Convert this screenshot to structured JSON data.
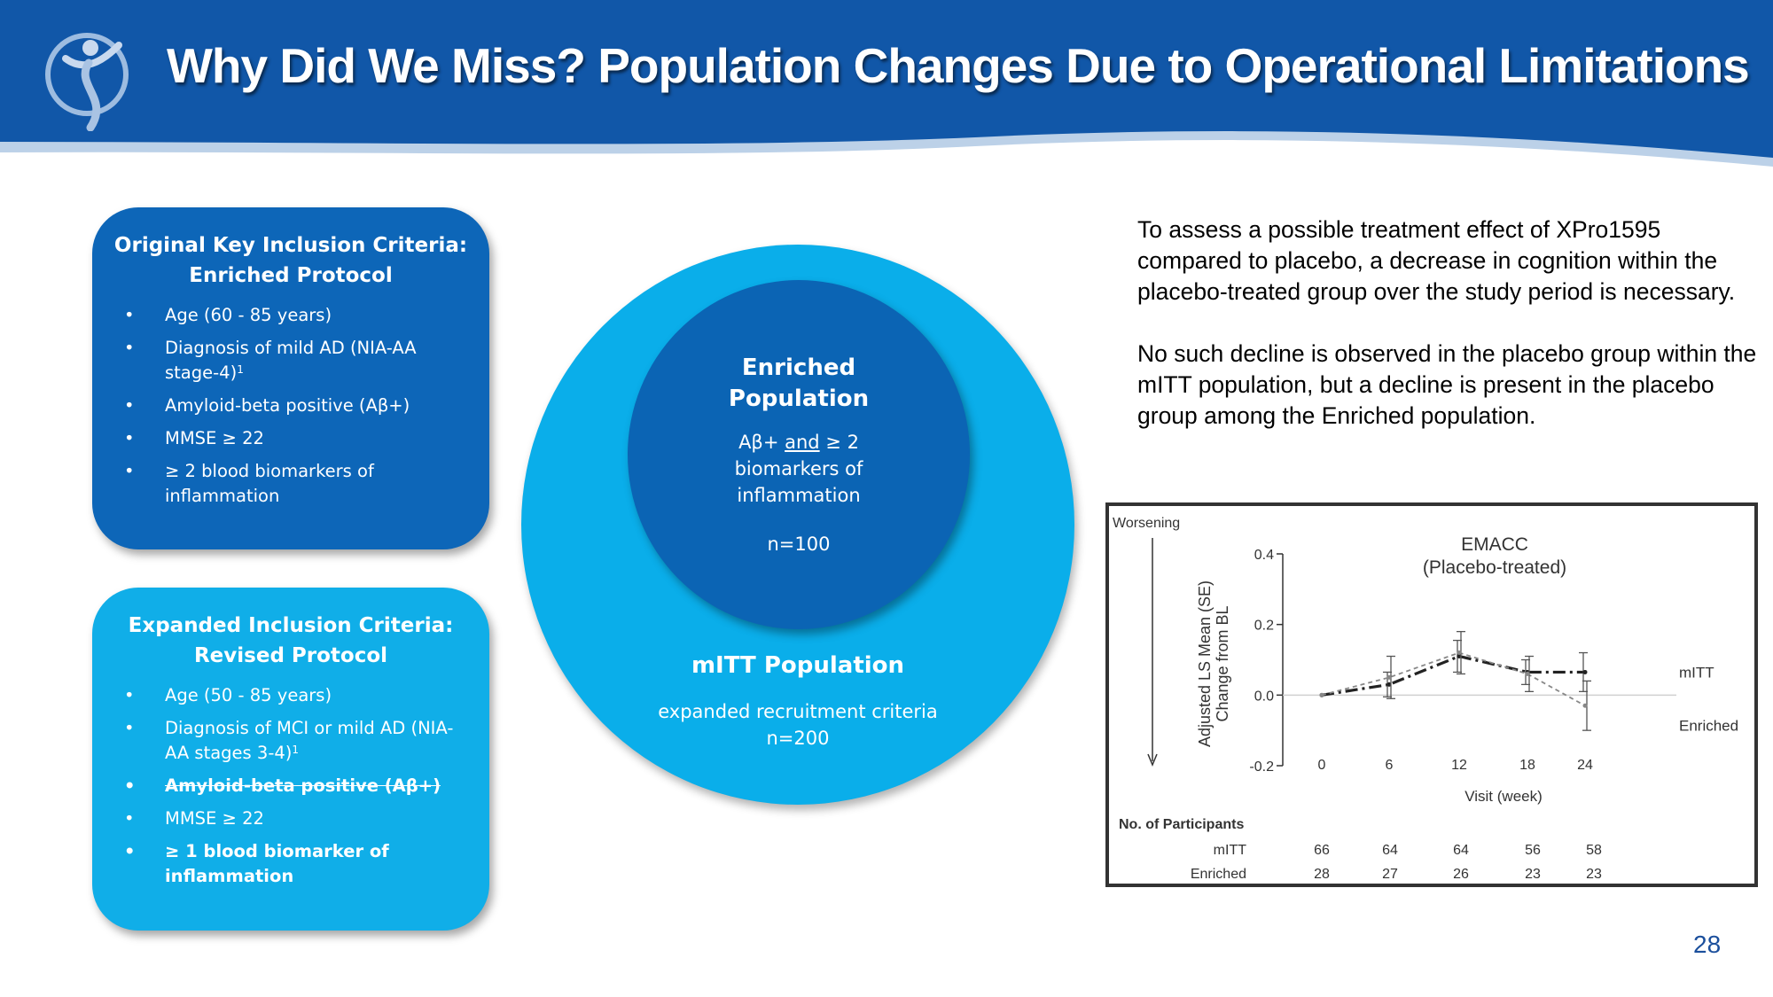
{
  "title": "Why Did We Miss? Population Changes Due to Operational Limitations",
  "original_box": {
    "title_line1": "Original Key Inclusion Criteria:",
    "title_line2": "Enriched Protocol",
    "items": [
      "Age (60 - 85 years)",
      "Diagnosis of mild AD (NIA-AA stage-4)",
      "Amyloid-beta positive (Aβ+)",
      "MMSE ≥ 22",
      "≥ 2 blood biomarkers of inflammation"
    ],
    "sup": "1",
    "bullet": "•"
  },
  "expanded_box": {
    "title_line1": "Expanded Inclusion Criteria:",
    "title_line2": "Revised Protocol",
    "items": [
      "Age (50 - 85 years)",
      "Diagnosis of MCI or mild AD (NIA-AA stages 3-4)",
      "Amyloid-beta positive (Aβ+)",
      "MMSE ≥ 22",
      "≥ 1 blood biomarker of inflammation"
    ],
    "sup": "1",
    "bullet": "•"
  },
  "inner_circle": {
    "title_line1": "Enriched",
    "title_line2": "Population",
    "desc_pre": "Aβ+ ",
    "desc_and": "and",
    "desc_post": " ≥ 2",
    "desc_line2": "biomarkers of",
    "desc_line3": "inflammation",
    "n": "n=100"
  },
  "outer_circle": {
    "title": "mITT Population",
    "desc_line1": "expanded recruitment criteria",
    "desc_line2": "n=200"
  },
  "right_text": {
    "para1": "To assess a possible treatment effect of XPro1595 compared to placebo, a decrease in cognition within the placebo-treated group over the study period is necessary.",
    "para2": "No such decline is observed in the placebo group within the mITT population, but a decline is present in the placebo group among the Enriched population."
  },
  "chart_data": {
    "type": "line",
    "title_line1": "EMACC",
    "title_line2": "(Placebo-treated)",
    "worsening_label": "Worsening",
    "ylabel_line1": "Adjusted LS Mean (SE)",
    "ylabel_line2": "Change from BL",
    "xlabel": "Visit (week)",
    "x": [
      0,
      6,
      12,
      18,
      24
    ],
    "ylim": [
      -0.2,
      0.4
    ],
    "yticks": [
      "0.4",
      "0.2",
      "0.0",
      "-0.2"
    ],
    "xticks": [
      "0",
      "6",
      "12",
      "18",
      "24"
    ],
    "series": [
      {
        "name": "mITT",
        "values": [
          0.0,
          0.03,
          0.11,
          0.065,
          0.065
        ],
        "se": [
          0.0,
          0.035,
          0.045,
          0.035,
          0.055
        ]
      },
      {
        "name": "Enriched",
        "values": [
          0.0,
          0.05,
          0.12,
          0.06,
          -0.03
        ],
        "se": [
          0.0,
          0.06,
          0.06,
          0.05,
          0.07
        ]
      }
    ],
    "participants": {
      "header": "No. of Participants",
      "rows": [
        {
          "label": "mITT",
          "counts": [
            "66",
            "64",
            "64",
            "56",
            "58"
          ]
        },
        {
          "label": "Enriched",
          "counts": [
            "28",
            "27",
            "26",
            "23",
            "23"
          ]
        }
      ]
    }
  },
  "page_number": "28",
  "colors": {
    "header_blue": "#1157a8",
    "dark_blue": "#0d66b8",
    "light_blue": "#10aee8"
  }
}
